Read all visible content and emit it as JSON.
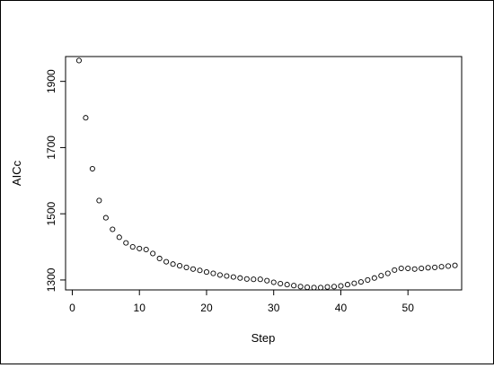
{
  "chart_data": {
    "type": "scatter",
    "title": "",
    "xlabel": "Step",
    "ylabel": "AICc",
    "xlim": [
      -1,
      58
    ],
    "ylim": [
      1270,
      1975
    ],
    "x_ticks": [
      0,
      10,
      20,
      30,
      40,
      50
    ],
    "y_ticks": [
      1300,
      1500,
      1700,
      1900
    ],
    "grid": false,
    "legend": "none",
    "marker": "open-circle",
    "colors": {
      "marker": "#000000",
      "axis": "#000000",
      "background": "#ffffff"
    },
    "series": [
      {
        "x": [
          1,
          2,
          3,
          4,
          5,
          6,
          7,
          8,
          9,
          10,
          11,
          12,
          13,
          14,
          15,
          16,
          17,
          18,
          19,
          20,
          21,
          22,
          23,
          24,
          25,
          26,
          27,
          28,
          29,
          30,
          31,
          32,
          33,
          34,
          35,
          36,
          37,
          38,
          39,
          40,
          41,
          42,
          43,
          44,
          45,
          46,
          47,
          48,
          49,
          50,
          51,
          52,
          53,
          54,
          55,
          56,
          57
        ],
        "y": [
          1963,
          1790,
          1636,
          1540,
          1488,
          1453,
          1429,
          1412,
          1400,
          1395,
          1392,
          1380,
          1365,
          1355,
          1348,
          1343,
          1338,
          1333,
          1329,
          1324,
          1320,
          1315,
          1312,
          1309,
          1306,
          1303,
          1302,
          1302,
          1298,
          1293,
          1289,
          1286,
          1283,
          1280,
          1278,
          1277,
          1277,
          1279,
          1280,
          1282,
          1286,
          1290,
          1294,
          1300,
          1306,
          1313,
          1320,
          1330,
          1335,
          1335,
          1333,
          1335,
          1337,
          1338,
          1340,
          1342,
          1344
        ]
      }
    ]
  }
}
